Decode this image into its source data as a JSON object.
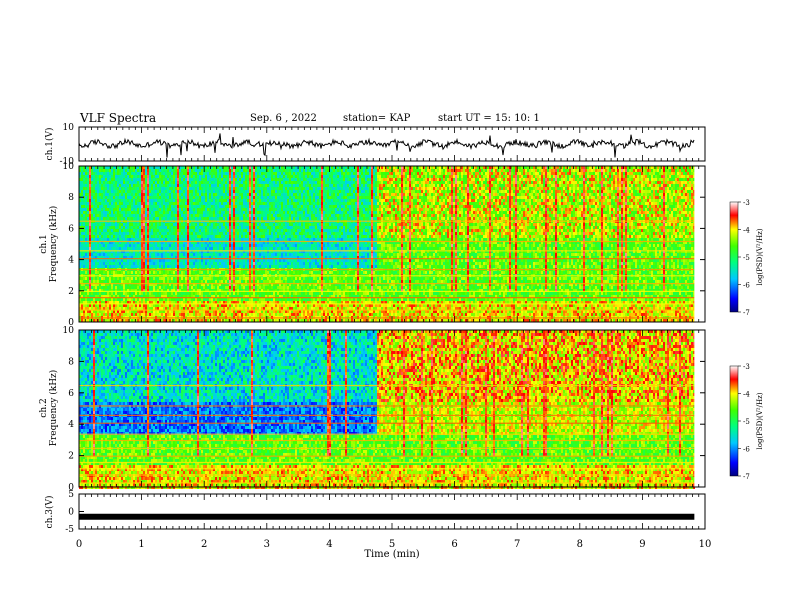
{
  "header": {
    "title": "VLF Spectra",
    "date": "Sep. 6 , 2022",
    "station": "station= KAP",
    "start": "start UT = 15: 10: 1"
  },
  "chart_data": [
    {
      "type": "line",
      "name": "ch1-waveform",
      "ylabel": "ch.1(V)",
      "ylim": [
        -10,
        10
      ],
      "yticks": [
        "10",
        "-10"
      ],
      "xlim": [
        0,
        10
      ],
      "trace_end_min": 9.83,
      "series": [
        {
          "x_range": [
            0,
            9.83
          ],
          "values_range": [
            -4,
            4
          ]
        }
      ]
    },
    {
      "type": "heatmap",
      "name": "ch1-spectrogram",
      "ylabel_channel": "ch.1",
      "ylabel": "Frequency (kHz)",
      "ylim": [
        0,
        10
      ],
      "yticks": [
        "0",
        "2",
        "4",
        "6",
        "8",
        "10"
      ],
      "xlim": [
        0,
        10
      ],
      "data_end_min": 9.83,
      "regime_change_min": 4.75,
      "colorbar": {
        "label": "log(PSD)(V²/Hz)",
        "range": [
          -7,
          -3
        ],
        "ticks": [
          "-3",
          "-4",
          "-5",
          "-6",
          "-7"
        ]
      }
    },
    {
      "type": "heatmap",
      "name": "ch2-spectrogram",
      "ylabel_channel": "ch.2",
      "ylabel": "Frequency (kHz)",
      "ylim": [
        0,
        10
      ],
      "yticks": [
        "0",
        "2",
        "4",
        "6",
        "8",
        "10"
      ],
      "xlim": [
        0,
        10
      ],
      "data_end_min": 9.83,
      "regime_change_min": 4.75,
      "colorbar": {
        "label": "log(PSD)(V²/Hz)",
        "range": [
          -7,
          -3
        ],
        "ticks": [
          "-3",
          "-4",
          "-5",
          "-6",
          "-7"
        ]
      }
    },
    {
      "type": "line",
      "name": "ch3-waveform",
      "ylabel": "ch.3(V)",
      "ylim": [
        -5,
        5
      ],
      "yticks": [
        "5",
        "0",
        "-5"
      ],
      "xlim": [
        0,
        10
      ],
      "xlabel": "Time (min)",
      "xticks": [
        "0",
        "1",
        "2",
        "3",
        "4",
        "5",
        "6",
        "7",
        "8",
        "9",
        "10"
      ],
      "trace_end_min": 9.83,
      "series": [
        {
          "x_range": [
            0,
            9.83
          ],
          "values": [
            -1.5,
            -1.5
          ]
        }
      ]
    }
  ]
}
